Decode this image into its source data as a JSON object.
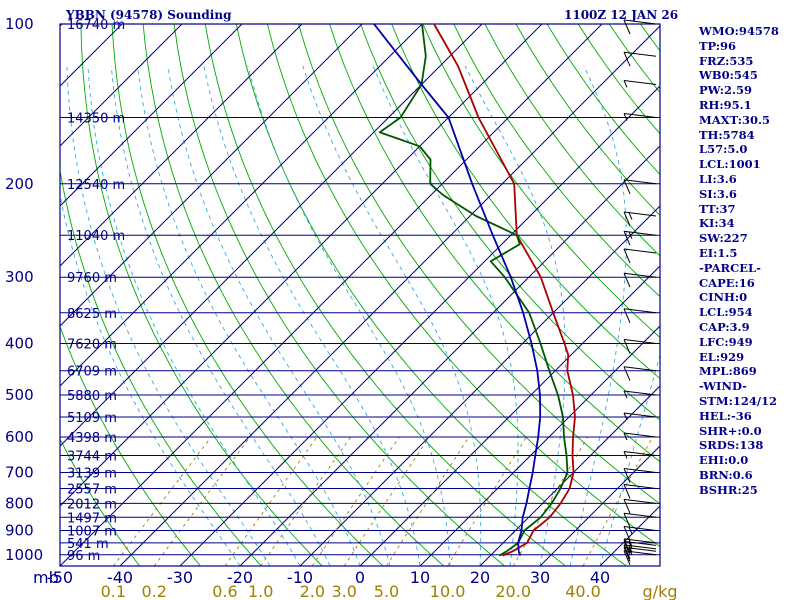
{
  "header": {
    "station": "YBBN (94578) Sounding",
    "time": "1100Z 12 JAN 26"
  },
  "sidebar": {
    "items": [
      "WMO:94578",
      "TP:96",
      "FRZ:535",
      "WB0:545",
      "PW:2.59",
      "RH:95.1",
      "MAXT:30.5",
      "TH:5784",
      "L57:5.0",
      "LCL:1001",
      "LI:3.6",
      "SI:3.6",
      "TT:37",
      "KI:34",
      "SW:227",
      "EI:1.5",
      "-PARCEL-",
      "CAPE:16",
      "CINH:0",
      "LCL:954",
      "CAP:3.9",
      "LFC:949",
      "EL:929",
      "MPL:869",
      "-WIND-",
      "STM:124/12",
      "HEL:-36",
      "SHR+:0.0",
      "SRDS:138",
      "EHI:0.0",
      "BRN:0.6",
      "BSHR:25"
    ]
  },
  "colors": {
    "frame": "#000088",
    "temperature": "#aa0000",
    "dewpoint": "#005500",
    "parcel": "#0000aa",
    "dry_adiabat": "#00aa00",
    "moist_adiabat": "#33aadd",
    "mixing_ratio": "#a08000",
    "wind_barb": "#000000"
  },
  "chart_data": {
    "type": "skew-t",
    "title": "YBBN (94578) Sounding",
    "pressure_labels": [
      "100",
      "200",
      "300",
      "400",
      "500",
      "600",
      "700",
      "800",
      "900",
      "1000"
    ],
    "pressure_unit": "mb",
    "y_axis_scale": "log-pressure",
    "pressure_range_mb": [
      1050,
      100
    ],
    "temperature_labels": [
      "-50",
      "-40",
      "-30",
      "-20",
      "-10",
      "0",
      "10",
      "20",
      "30",
      "40"
    ],
    "temperature_unit": "C",
    "temperature_range_at_1050mb": [
      -50,
      50
    ],
    "mixing_ratio_labels": [
      "0.1",
      "0.2",
      "0.6",
      "1.0",
      "2.0",
      "3.0",
      "5.0",
      "10.0",
      "20.0",
      "40.0"
    ],
    "mixing_ratio_unit": "g/kg",
    "height_labels": [
      {
        "p": 100,
        "text": "16740 m"
      },
      {
        "p": 150,
        "text": "14350 m"
      },
      {
        "p": 200,
        "text": "12540 m"
      },
      {
        "p": 250,
        "text": "11040 m"
      },
      {
        "p": 300,
        "text": "9760 m"
      },
      {
        "p": 350,
        "text": "8625 m"
      },
      {
        "p": 400,
        "text": "7620 m"
      },
      {
        "p": 450,
        "text": "6709 m"
      },
      {
        "p": 500,
        "text": "5880 m"
      },
      {
        "p": 550,
        "text": "5109 m"
      },
      {
        "p": 600,
        "text": "4398 m"
      },
      {
        "p": 650,
        "text": "3744 m"
      },
      {
        "p": 700,
        "text": "3139 m"
      },
      {
        "p": 750,
        "text": "2557 m"
      },
      {
        "p": 800,
        "text": "2012 m"
      },
      {
        "p": 850,
        "text": "1497 m"
      },
      {
        "p": 900,
        "text": "1007 m"
      },
      {
        "p": 950,
        "text": "541 m"
      },
      {
        "p": 1000,
        "text": "96 m"
      }
    ],
    "series": [
      {
        "name": "temperature",
        "points": [
          [
            1004,
            22
          ],
          [
            985,
            23
          ],
          [
            950,
            24
          ],
          [
            900,
            23
          ],
          [
            850,
            23.5
          ],
          [
            800,
            23
          ],
          [
            750,
            22
          ],
          [
            700,
            20
          ],
          [
            650,
            17
          ],
          [
            600,
            14
          ],
          [
            550,
            11
          ],
          [
            500,
            7
          ],
          [
            450,
            2
          ],
          [
            420,
            -0.5
          ],
          [
            400,
            -3
          ],
          [
            350,
            -10
          ],
          [
            300,
            -18
          ],
          [
            250,
            -29
          ],
          [
            200,
            -38
          ],
          [
            150,
            -55
          ],
          [
            120,
            -67
          ],
          [
            100,
            -78
          ]
        ]
      },
      {
        "name": "dewpoint",
        "points": [
          [
            1004,
            21.5
          ],
          [
            985,
            22
          ],
          [
            950,
            22.5
          ],
          [
            900,
            21.5
          ],
          [
            850,
            22
          ],
          [
            800,
            21.5
          ],
          [
            750,
            20.5
          ],
          [
            700,
            19
          ],
          [
            650,
            16
          ],
          [
            600,
            12.5
          ],
          [
            550,
            9
          ],
          [
            500,
            4.5
          ],
          [
            450,
            -1
          ],
          [
            400,
            -7
          ],
          [
            350,
            -14
          ],
          [
            300,
            -24
          ],
          [
            280,
            -29
          ],
          [
            260,
            -27
          ],
          [
            250,
            -29
          ],
          [
            230,
            -39
          ],
          [
            210,
            -48
          ],
          [
            200,
            -52
          ],
          [
            180,
            -56
          ],
          [
            170,
            -60
          ],
          [
            160,
            -69
          ],
          [
            150,
            -68
          ],
          [
            130,
            -70
          ],
          [
            115,
            -74
          ],
          [
            100,
            -80
          ]
        ]
      },
      {
        "name": "parcel",
        "points": [
          [
            1004,
            25
          ],
          [
            985,
            24
          ],
          [
            950,
            22.5
          ],
          [
            900,
            21
          ],
          [
            850,
            19
          ],
          [
            800,
            17.3
          ],
          [
            750,
            15.3
          ],
          [
            700,
            13.2
          ],
          [
            650,
            10.8
          ],
          [
            600,
            8.2
          ],
          [
            550,
            5.2
          ],
          [
            500,
            1.5
          ],
          [
            450,
            -3
          ],
          [
            400,
            -8.5
          ],
          [
            350,
            -15
          ],
          [
            300,
            -23
          ],
          [
            250,
            -33
          ],
          [
            200,
            -45
          ],
          [
            150,
            -60
          ],
          [
            130,
            -70
          ],
          [
            100,
            -88
          ]
        ]
      }
    ],
    "wind_barbs": [
      {
        "p": 1000,
        "speed_kt": 10
      },
      {
        "p": 985,
        "speed_kt": 15
      },
      {
        "p": 975,
        "speed_kt": 15
      },
      {
        "p": 960,
        "speed_kt": 15
      },
      {
        "p": 950,
        "speed_kt": 15
      },
      {
        "p": 900,
        "speed_kt": 15
      },
      {
        "p": 850,
        "speed_kt": 10
      },
      {
        "p": 800,
        "speed_kt": 10
      },
      {
        "p": 750,
        "speed_kt": 10
      },
      {
        "p": 700,
        "speed_kt": 10
      },
      {
        "p": 650,
        "speed_kt": 5
      },
      {
        "p": 600,
        "speed_kt": 5
      },
      {
        "p": 550,
        "speed_kt": 5
      },
      {
        "p": 500,
        "speed_kt": 5
      },
      {
        "p": 450,
        "speed_kt": 10
      },
      {
        "p": 400,
        "speed_kt": 10
      },
      {
        "p": 350,
        "speed_kt": 10
      },
      {
        "p": 300,
        "speed_kt": 10
      },
      {
        "p": 270,
        "speed_kt": 10
      },
      {
        "p": 250,
        "speed_kt": 15
      },
      {
        "p": 230,
        "speed_kt": 15
      },
      {
        "p": 200,
        "speed_kt": 10
      },
      {
        "p": 150,
        "speed_kt": 5
      },
      {
        "p": 130,
        "speed_kt": 5
      },
      {
        "p": 115,
        "speed_kt": 10
      },
      {
        "p": 100,
        "speed_kt": 10
      }
    ]
  }
}
